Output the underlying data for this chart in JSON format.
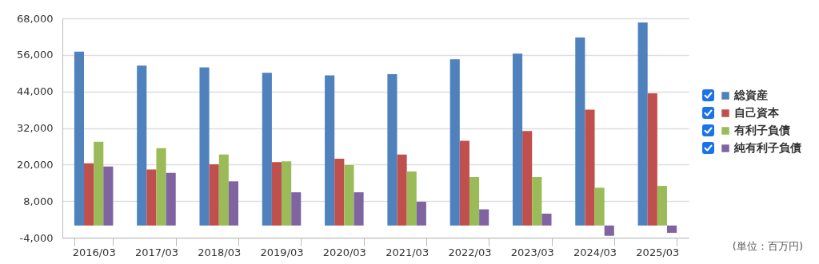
{
  "chart_data": {
    "type": "bar",
    "categories": [
      "2016/03",
      "2017/03",
      "2018/03",
      "2019/03",
      "2020/03",
      "2021/03",
      "2022/03",
      "2023/03",
      "2024/03",
      "2025/03"
    ],
    "series": [
      {
        "name": "総資産",
        "color": "#4f81bd",
        "values": [
          57100,
          52500,
          51900,
          50100,
          49300,
          49700,
          54600,
          56400,
          61700,
          66600
        ]
      },
      {
        "name": "自己資本",
        "color": "#c0504d",
        "values": [
          20400,
          18400,
          20100,
          20800,
          21900,
          23300,
          27800,
          31000,
          38000,
          43400
        ]
      },
      {
        "name": "有利子負債",
        "color": "#9bbb59",
        "values": [
          27500,
          25400,
          23300,
          21100,
          19800,
          17700,
          15900,
          15900,
          12400,
          13000
        ]
      },
      {
        "name": "純有利子負債",
        "color": "#8064a2",
        "values": [
          19400,
          17300,
          14500,
          10900,
          10900,
          7800,
          5300,
          3900,
          -3400,
          -2400
        ]
      }
    ],
    "ylim": [
      -4000,
      68000
    ],
    "yticks": [
      {
        "value": -4000,
        "label": "-4,000"
      },
      {
        "value": 8000,
        "label": "8,000"
      },
      {
        "value": 20000,
        "label": "20,000"
      },
      {
        "value": 32000,
        "label": "32,000"
      },
      {
        "value": 44000,
        "label": "44,000"
      },
      {
        "value": 56000,
        "label": "56,000"
      },
      {
        "value": 68000,
        "label": "68,000"
      }
    ],
    "grid": "y",
    "legend": "right",
    "annotations": [
      "(単位：百万円)"
    ]
  }
}
